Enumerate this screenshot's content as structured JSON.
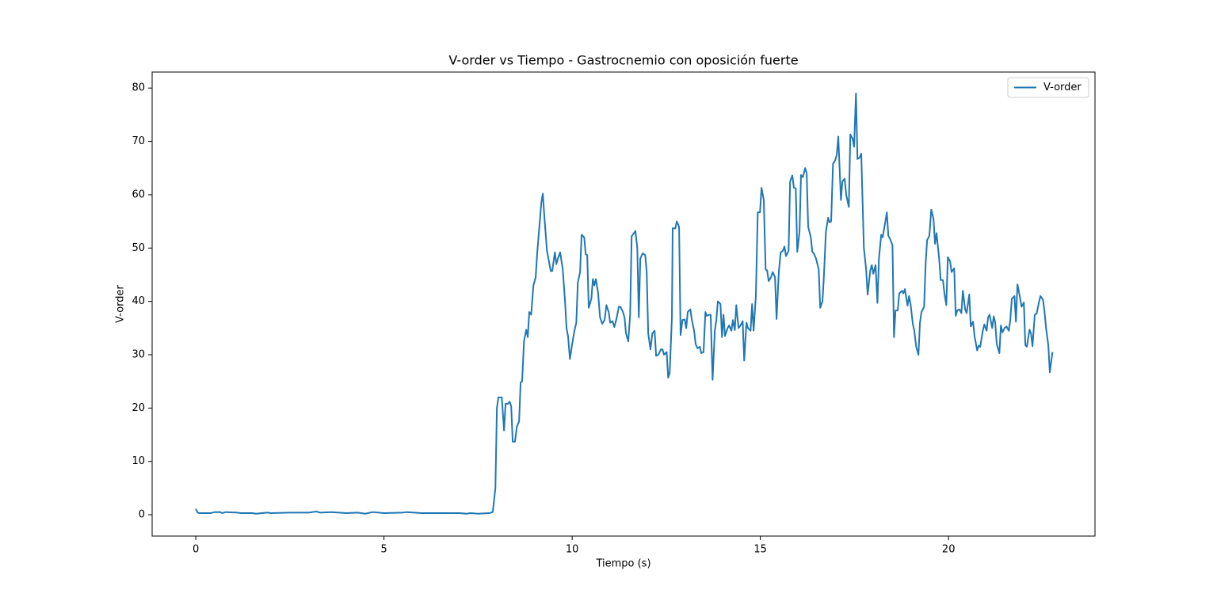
{
  "chart_data": {
    "type": "line",
    "title": "V-order vs Tiempo - Gastrocnemio con oposición fuerte",
    "xlabel": "Tiempo (s)",
    "ylabel": "V-order",
    "x": [
      0,
      0.05,
      0.1,
      0.4,
      0.5,
      0.65,
      0.7,
      0.8,
      1.1,
      1.2,
      1.5,
      1.6,
      1.9,
      2.0,
      2.5,
      3.0,
      3.2,
      3.3,
      3.6,
      4.0,
      4.3,
      4.5,
      4.7,
      5.0,
      5.5,
      5.6,
      6.0,
      6.5,
      7.0,
      7.2,
      7.3,
      7.5,
      7.8,
      7.89,
      7.96,
      8.0,
      8.04,
      8.13,
      8.19,
      8.23,
      8.29,
      8.34,
      8.38,
      8.42,
      8.48,
      8.53,
      8.59,
      8.63,
      8.67,
      8.72,
      8.78,
      8.82,
      8.86,
      8.91,
      8.97,
      9.03,
      9.07,
      9.14,
      9.18,
      9.22,
      9.26,
      9.33,
      9.37,
      9.43,
      9.47,
      9.54,
      9.58,
      9.62,
      9.68,
      9.75,
      9.81,
      9.85,
      9.89,
      9.94,
      10.0,
      10.06,
      10.11,
      10.15,
      10.21,
      10.25,
      10.32,
      10.36,
      10.4,
      10.44,
      10.51,
      10.55,
      10.59,
      10.63,
      10.69,
      10.74,
      10.8,
      10.86,
      10.91,
      10.97,
      11.01,
      11.07,
      11.12,
      11.18,
      11.24,
      11.28,
      11.35,
      11.39,
      11.43,
      11.49,
      11.54,
      11.58,
      11.64,
      11.68,
      11.73,
      11.77,
      11.81,
      11.87,
      11.94,
      11.98,
      12.02,
      12.08,
      12.13,
      12.19,
      12.23,
      12.29,
      12.36,
      12.4,
      12.44,
      12.51,
      12.55,
      12.59,
      12.65,
      12.67,
      12.74,
      12.78,
      12.84,
      12.88,
      12.93,
      12.99,
      13.03,
      13.07,
      13.14,
      13.18,
      13.24,
      13.28,
      13.33,
      13.39,
      13.43,
      13.49,
      13.54,
      13.58,
      13.64,
      13.68,
      13.73,
      13.79,
      13.83,
      13.87,
      13.94,
      13.98,
      14.02,
      14.06,
      14.13,
      14.17,
      14.23,
      14.27,
      14.32,
      14.36,
      14.42,
      14.48,
      14.53,
      14.57,
      14.63,
      14.67,
      14.74,
      14.78,
      14.82,
      14.88,
      14.93,
      14.99,
      15.03,
      15.09,
      15.14,
      15.18,
      15.22,
      15.28,
      15.33,
      15.39,
      15.43,
      15.49,
      15.54,
      15.6,
      15.64,
      15.68,
      15.75,
      15.79,
      15.85,
      15.89,
      15.94,
      15.98,
      16.04,
      16.08,
      16.13,
      16.19,
      16.23,
      16.27,
      16.34,
      16.38,
      16.42,
      16.48,
      16.55,
      16.59,
      16.65,
      16.69,
      16.74,
      16.8,
      16.84,
      16.88,
      16.93,
      16.99,
      17.03,
      17.07,
      17.14,
      17.18,
      17.24,
      17.28,
      17.35,
      17.39,
      17.45,
      17.49,
      17.54,
      17.58,
      17.64,
      17.68,
      17.75,
      17.81,
      17.85,
      17.92,
      17.96,
      18.0,
      18.06,
      18.11,
      18.15,
      18.21,
      18.25,
      18.29,
      18.36,
      18.4,
      18.46,
      18.51,
      18.55,
      18.59,
      18.65,
      18.69,
      18.76,
      18.8,
      18.84,
      18.91,
      18.95,
      18.99,
      19.05,
      19.09,
      19.14,
      19.2,
      19.24,
      19.28,
      19.35,
      19.39,
      19.43,
      19.49,
      19.54,
      19.6,
      19.64,
      19.68,
      19.75,
      19.79,
      19.85,
      19.89,
      19.94,
      19.98,
      20.04,
      20.08,
      20.15,
      20.19,
      20.23,
      20.29,
      20.34,
      20.38,
      20.44,
      20.48,
      20.55,
      20.59,
      20.65,
      20.69,
      20.76,
      20.8,
      20.84,
      20.91,
      20.95,
      21.01,
      21.05,
      21.09,
      21.16,
      21.2,
      21.24,
      21.28,
      21.35,
      21.39,
      21.43,
      21.49,
      21.54,
      21.6,
      21.64,
      21.68,
      21.75,
      21.79,
      21.83,
      21.89,
      21.94,
      22.0,
      22.04,
      22.08,
      22.15,
      22.19,
      22.23,
      22.29,
      22.34,
      22.4,
      22.44,
      22.51,
      22.55,
      22.59,
      22.65,
      22.69,
      22.76
    ],
    "series": [
      {
        "name": "V-order",
        "color": "#1f77b4",
        "values": [
          1.1,
          0.4,
          0.3,
          0.3,
          0.5,
          0.5,
          0.3,
          0.5,
          0.4,
          0.3,
          0.3,
          0.2,
          0.4,
          0.3,
          0.4,
          0.4,
          0.6,
          0.4,
          0.5,
          0.3,
          0.4,
          0.2,
          0.5,
          0.3,
          0.4,
          0.5,
          0.3,
          0.3,
          0.3,
          0.2,
          0.3,
          0.2,
          0.3,
          0.5,
          5,
          20,
          22,
          22,
          15.8,
          20.8,
          20.8,
          21.2,
          20.3,
          13.7,
          13.7,
          16.5,
          17.5,
          24.8,
          25,
          32.5,
          34.7,
          33.3,
          38,
          37.5,
          43,
          44.5,
          49,
          55,
          58.5,
          60.2,
          56,
          49.5,
          48,
          45.7,
          45.7,
          49.2,
          47,
          48,
          49.2,
          46,
          40,
          35,
          33.5,
          29.2,
          32,
          34.5,
          36,
          43.5,
          45.5,
          52.5,
          52,
          48.8,
          48.7,
          38.8,
          40.5,
          44.2,
          43,
          44.2,
          41.5,
          37,
          35.8,
          36.5,
          39.3,
          38,
          36,
          36.3,
          35.2,
          36.8,
          39,
          39,
          38,
          37,
          34,
          32.5,
          37.5,
          52.2,
          52.8,
          53.2,
          50,
          37,
          48,
          49,
          48.7,
          45.5,
          34,
          31,
          34,
          34.5,
          29.8,
          30,
          31,
          31,
          30,
          30.5,
          25.7,
          26.5,
          37,
          53.7,
          53.7,
          55,
          54,
          33.7,
          36.5,
          36.6,
          35,
          38,
          38.5,
          36.5,
          34.5,
          32,
          31.2,
          31.5,
          30.3,
          30.5,
          38,
          37.3,
          37.5,
          37.5,
          25.3,
          34.5,
          36.5,
          40,
          39.5,
          33.3,
          37.5,
          33.5,
          35,
          35.5,
          34.5,
          36.5,
          34.6,
          39.3,
          35,
          35.6,
          36.3,
          28.9,
          36,
          35,
          34.5,
          39.5,
          34.5,
          41,
          56.7,
          56.7,
          61.3,
          59,
          46,
          45.8,
          43.8,
          44.5,
          45.5,
          44.5,
          36.7,
          45.5,
          49.2,
          49.5,
          50.3,
          48.5,
          49.5,
          62.5,
          63.6,
          61.3,
          61.2,
          49.3,
          53,
          63.7,
          63.3,
          65,
          64,
          54,
          52,
          49.3,
          49,
          48,
          46,
          38.8,
          40,
          45,
          53,
          55.7,
          54.8,
          55,
          65.8,
          66.5,
          67.5,
          70.9,
          59,
          62.5,
          63,
          60,
          57.7,
          71.3,
          70.5,
          69,
          79,
          66.7,
          67,
          67.7,
          50,
          46,
          41.3,
          45.8,
          46.8,
          45.2,
          46.8,
          39.7,
          48,
          52.5,
          52,
          53.7,
          56.7,
          52.3,
          51.5,
          50.5,
          33.3,
          38.3,
          38.3,
          41.5,
          42,
          41.5,
          42.3,
          39.2,
          41,
          39.5,
          35.8,
          34.5,
          31.5,
          30,
          36,
          38,
          39,
          47,
          51.5,
          52.3,
          57.2,
          55.5,
          50.8,
          52.8,
          48,
          44,
          44,
          41.5,
          39.3,
          48.3,
          47.5,
          45.5,
          46.2,
          37.3,
          38.3,
          38.5,
          37.8,
          42,
          38.5,
          37.8,
          41.3,
          35.3,
          36.2,
          33.5,
          30.8,
          31.7,
          31.5,
          34.5,
          35.7,
          34.5,
          37,
          37.5,
          35,
          37.2,
          36,
          32,
          30.3,
          35.5,
          34.2,
          35,
          35.3,
          34.5,
          36.5,
          40.5,
          41,
          36.2,
          43.2,
          41,
          39,
          39.8,
          31.8,
          31.5,
          34.7,
          34,
          31.6,
          37.5,
          37.7,
          39.8,
          41,
          40.3,
          38,
          35,
          31.8,
          26.7,
          30.5
        ]
      }
    ],
    "xlim": [
      -1.16,
      23.89
    ],
    "ylim": [
      -4,
      83
    ],
    "xticks": [
      0,
      5,
      10,
      15,
      20
    ],
    "yticks": [
      0,
      10,
      20,
      30,
      40,
      50,
      60,
      70,
      80
    ],
    "grid": false,
    "legend": "upper right"
  }
}
